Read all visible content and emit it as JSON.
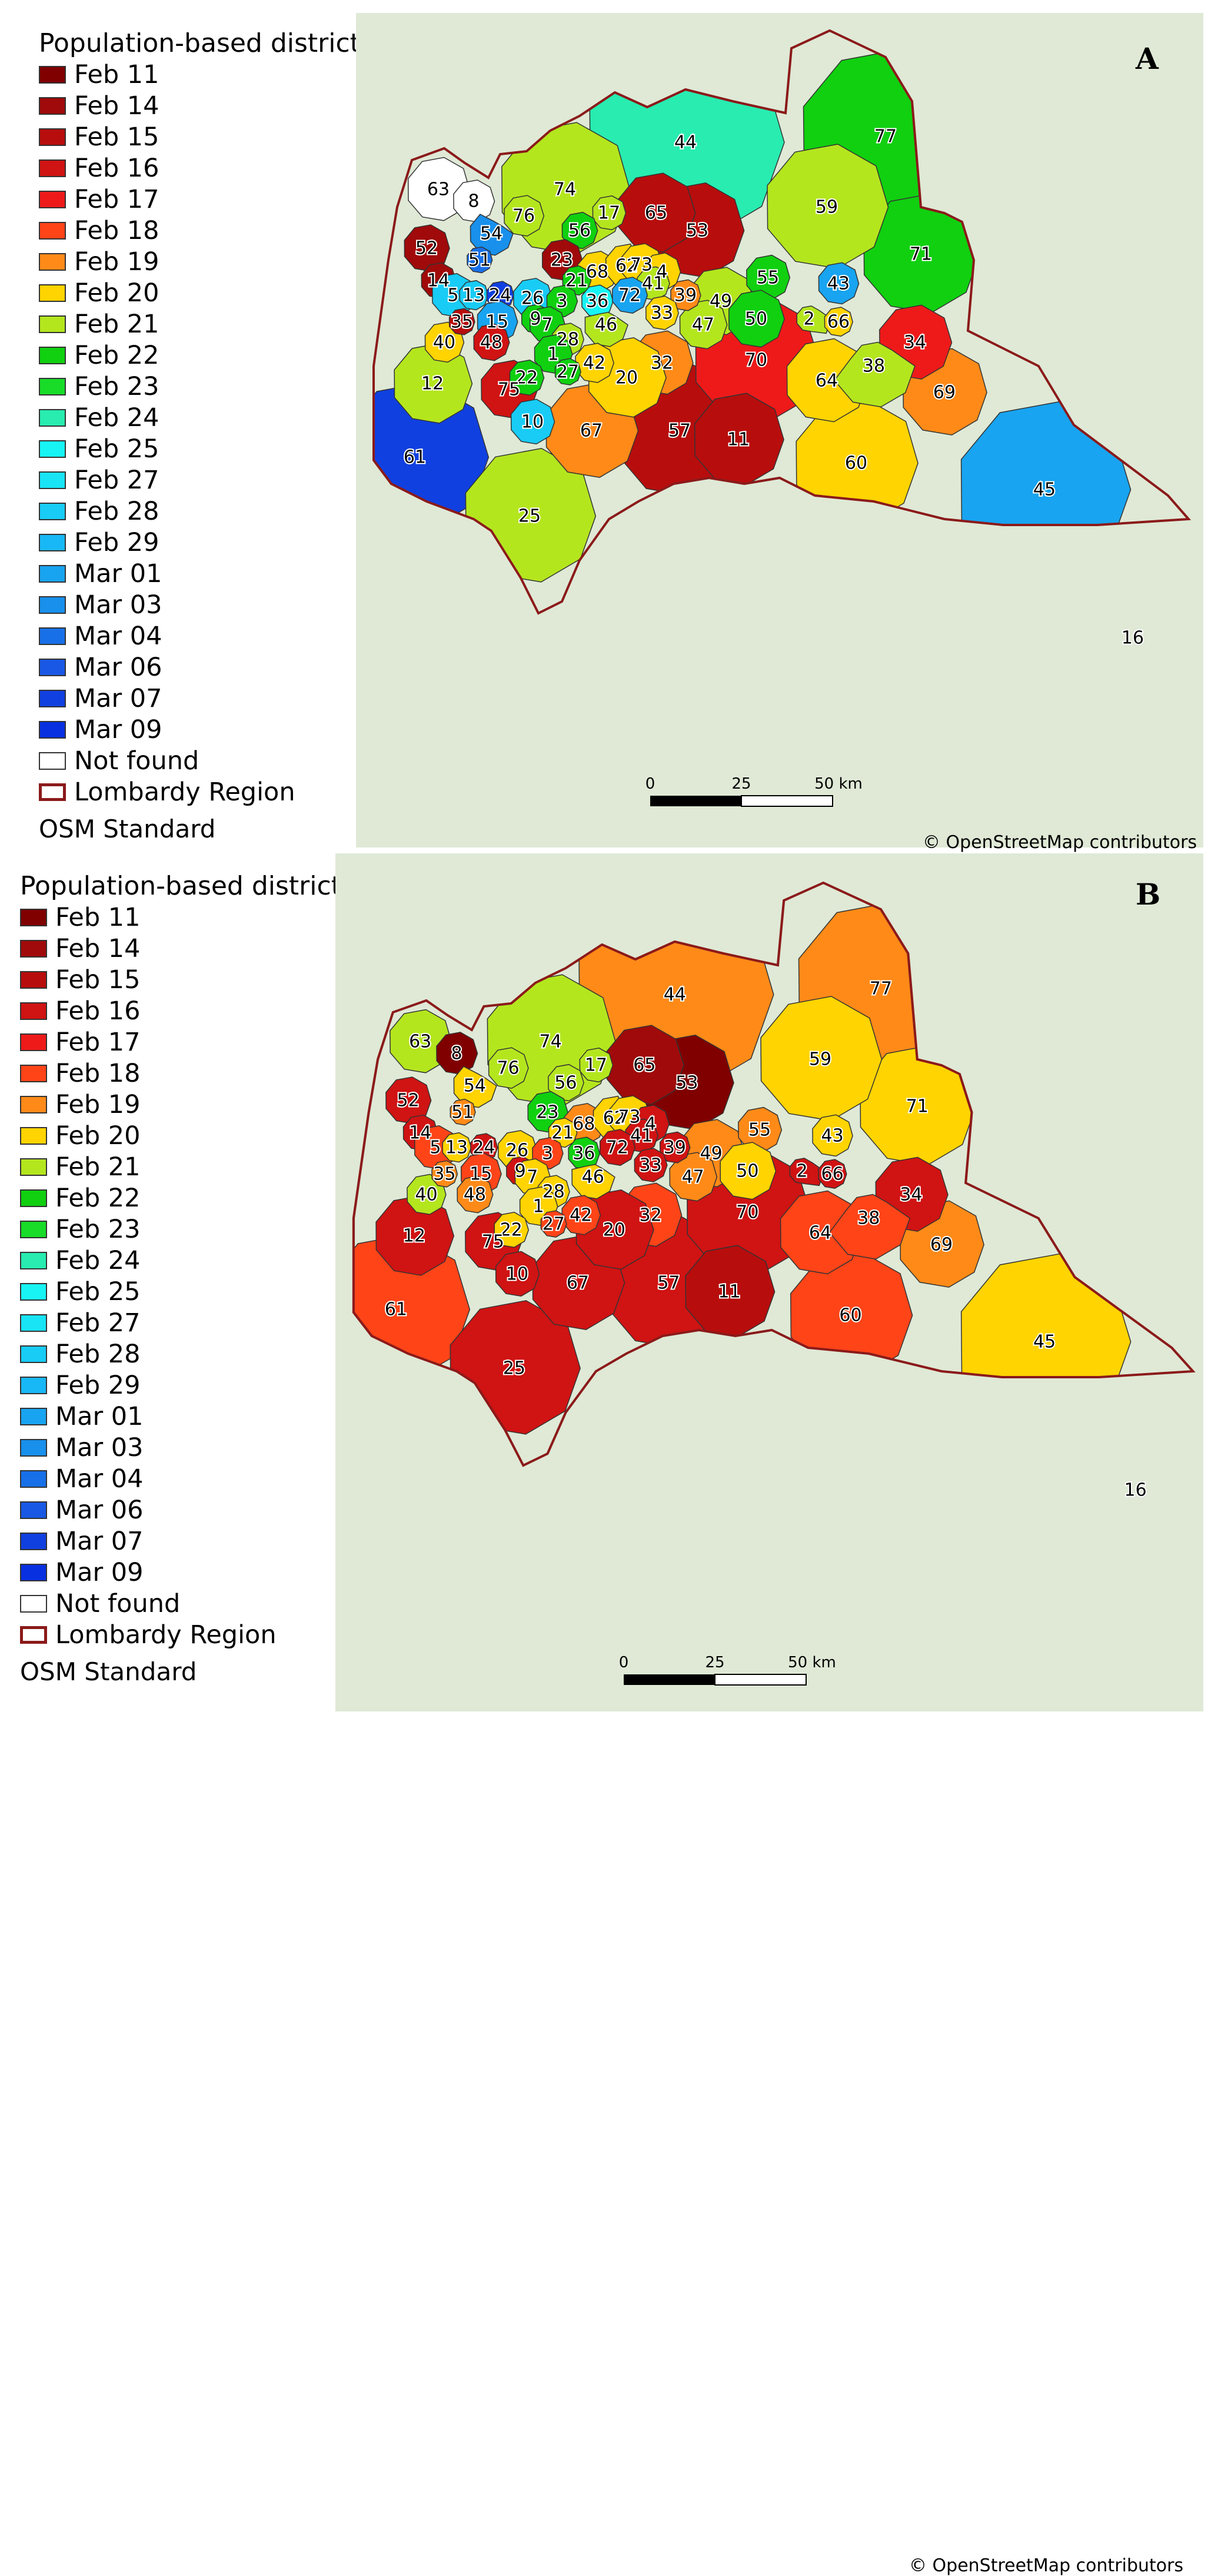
{
  "colors": {
    "Feb 11": "#800000",
    "Feb 14": "#a00a0a",
    "Feb 15": "#b80d0d",
    "Feb 16": "#d01313",
    "Feb 17": "#ee1a1a",
    "Feb 18": "#ff4418",
    "Feb 19": "#ff8a18",
    "Feb 20": "#ffd400",
    "Feb 21": "#b4e61e",
    "Feb 22": "#10d010",
    "Feb 23": "#18dc28",
    "Feb 24": "#28ecb0",
    "Feb 25": "#18f4f4",
    "Feb 27": "#18e4f6",
    "Feb 28": "#18ccf6",
    "Feb 29": "#18b8f6",
    "Mar 01": "#18a4f0",
    "Mar 03": "#1890ec",
    "Mar 04": "#1870e8",
    "Mar 06": "#1858e4",
    "Mar 07": "#1040e0",
    "Mar 09": "#0830e0",
    "Not found": "#ffffff",
    "region_border": "#8b1a1a",
    "basemap": "#dfe9d6"
  },
  "legend": {
    "title": "Population-based districts",
    "items": [
      "Feb 11",
      "Feb 14",
      "Feb 15",
      "Feb 16",
      "Feb 17",
      "Feb 18",
      "Feb 19",
      "Feb 20",
      "Feb 21",
      "Feb 22",
      "Feb 23",
      "Feb 24",
      "Feb 25",
      "Feb 27",
      "Feb 28",
      "Feb 29",
      "Mar 01",
      "Mar 03",
      "Mar 04",
      "Mar 06",
      "Mar 07",
      "Mar 09",
      "Not found"
    ],
    "region_label": "Lombardy Region",
    "basemap_label": "OSM Standard"
  },
  "scalebar": {
    "ticks": [
      "0",
      "25",
      "50 km"
    ]
  },
  "attribution": "© OpenStreetMap contributors",
  "panels": [
    {
      "letter": "A",
      "districts": [
        {
          "id": "63",
          "date": "Not found"
        },
        {
          "id": "8",
          "date": "Not found"
        },
        {
          "id": "16",
          "date": "Not found"
        },
        {
          "id": "44",
          "date": "Feb 24"
        },
        {
          "id": "77",
          "date": "Feb 22"
        },
        {
          "id": "74",
          "date": "Feb 21"
        },
        {
          "id": "76",
          "date": "Feb 21"
        },
        {
          "id": "17",
          "date": "Feb 21"
        },
        {
          "id": "56",
          "date": "Feb 22"
        },
        {
          "id": "65",
          "date": "Feb 15"
        },
        {
          "id": "53",
          "date": "Feb 15"
        },
        {
          "id": "59",
          "date": "Feb 21"
        },
        {
          "id": "71",
          "date": "Feb 22"
        },
        {
          "id": "54",
          "date": "Mar 03"
        },
        {
          "id": "52",
          "date": "Feb 14"
        },
        {
          "id": "23",
          "date": "Feb 14"
        },
        {
          "id": "68",
          "date": "Feb 20"
        },
        {
          "id": "62",
          "date": "Feb 20"
        },
        {
          "id": "73",
          "date": "Feb 20"
        },
        {
          "id": "51",
          "date": "Mar 04"
        },
        {
          "id": "4",
          "date": "Feb 20"
        },
        {
          "id": "41",
          "date": "Feb 21"
        },
        {
          "id": "55",
          "date": "Feb 22"
        },
        {
          "id": "43",
          "date": "Mar 01"
        },
        {
          "id": "14",
          "date": "Feb 14"
        },
        {
          "id": "21",
          "date": "Feb 22"
        },
        {
          "id": "39",
          "date": "Feb 19"
        },
        {
          "id": "49",
          "date": "Feb 21"
        },
        {
          "id": "5",
          "date": "Feb 28"
        },
        {
          "id": "13",
          "date": "Feb 28"
        },
        {
          "id": "24",
          "date": "Mar 07"
        },
        {
          "id": "26",
          "date": "Feb 28"
        },
        {
          "id": "3",
          "date": "Feb 22"
        },
        {
          "id": "36",
          "date": "Feb 25"
        },
        {
          "id": "72",
          "date": "Mar 01"
        },
        {
          "id": "33",
          "date": "Feb 20"
        },
        {
          "id": "50",
          "date": "Feb 22"
        },
        {
          "id": "2",
          "date": "Feb 21"
        },
        {
          "id": "66",
          "date": "Feb 20"
        },
        {
          "id": "35",
          "date": "Feb 15"
        },
        {
          "id": "15",
          "date": "Mar 01"
        },
        {
          "id": "9",
          "date": "Feb 22"
        },
        {
          "id": "7",
          "date": "Feb 22"
        },
        {
          "id": "46",
          "date": "Feb 21"
        },
        {
          "id": "47",
          "date": "Feb 21"
        },
        {
          "id": "34",
          "date": "Feb 17"
        },
        {
          "id": "40",
          "date": "Feb 20"
        },
        {
          "id": "48",
          "date": "Feb 16"
        },
        {
          "id": "28",
          "date": "Feb 21"
        },
        {
          "id": "1",
          "date": "Feb 22"
        },
        {
          "id": "42",
          "date": "Feb 20"
        },
        {
          "id": "32",
          "date": "Feb 19"
        },
        {
          "id": "70",
          "date": "Feb 17"
        },
        {
          "id": "38",
          "date": "Feb 21"
        },
        {
          "id": "22",
          "date": "Feb 22"
        },
        {
          "id": "27",
          "date": "Feb 22"
        },
        {
          "id": "20",
          "date": "Feb 20"
        },
        {
          "id": "64",
          "date": "Feb 20"
        },
        {
          "id": "12",
          "date": "Feb 21"
        },
        {
          "id": "75",
          "date": "Feb 16"
        },
        {
          "id": "69",
          "date": "Feb 19"
        },
        {
          "id": "10",
          "date": "Feb 28"
        },
        {
          "id": "67",
          "date": "Feb 19"
        },
        {
          "id": "57",
          "date": "Feb 15"
        },
        {
          "id": "11",
          "date": "Feb 15"
        },
        {
          "id": "61",
          "date": "Mar 07"
        },
        {
          "id": "60",
          "date": "Feb 20"
        },
        {
          "id": "45",
          "date": "Mar 01"
        },
        {
          "id": "25",
          "date": "Feb 21"
        }
      ]
    },
    {
      "letter": "B",
      "districts": [
        {
          "id": "63",
          "date": "Feb 21"
        },
        {
          "id": "8",
          "date": "Feb 11"
        },
        {
          "id": "16",
          "date": "Feb 16"
        },
        {
          "id": "44",
          "date": "Feb 19"
        },
        {
          "id": "77",
          "date": "Feb 19"
        },
        {
          "id": "74",
          "date": "Feb 21"
        },
        {
          "id": "76",
          "date": "Feb 21"
        },
        {
          "id": "17",
          "date": "Feb 21"
        },
        {
          "id": "56",
          "date": "Feb 21"
        },
        {
          "id": "65",
          "date": "Feb 14"
        },
        {
          "id": "53",
          "date": "Feb 11"
        },
        {
          "id": "59",
          "date": "Feb 20"
        },
        {
          "id": "71",
          "date": "Feb 20"
        },
        {
          "id": "54",
          "date": "Feb 20"
        },
        {
          "id": "52",
          "date": "Feb 16"
        },
        {
          "id": "23",
          "date": "Feb 22"
        },
        {
          "id": "68",
          "date": "Feb 19"
        },
        {
          "id": "62",
          "date": "Feb 20"
        },
        {
          "id": "73",
          "date": "Feb 20"
        },
        {
          "id": "51",
          "date": "Feb 19"
        },
        {
          "id": "4",
          "date": "Feb 16"
        },
        {
          "id": "41",
          "date": "Feb 16"
        },
        {
          "id": "55",
          "date": "Feb 19"
        },
        {
          "id": "43",
          "date": "Feb 20"
        },
        {
          "id": "14",
          "date": "Feb 16"
        },
        {
          "id": "21",
          "date": "Feb 20"
        },
        {
          "id": "39",
          "date": "Feb 16"
        },
        {
          "id": "49",
          "date": "Feb 19"
        },
        {
          "id": "5",
          "date": "Feb 18"
        },
        {
          "id": "13",
          "date": "Feb 20"
        },
        {
          "id": "24",
          "date": "Feb 16"
        },
        {
          "id": "26",
          "date": "Feb 20"
        },
        {
          "id": "3",
          "date": "Feb 18"
        },
        {
          "id": "36",
          "date": "Feb 22"
        },
        {
          "id": "72",
          "date": "Feb 16"
        },
        {
          "id": "33",
          "date": "Feb 16"
        },
        {
          "id": "50",
          "date": "Feb 20"
        },
        {
          "id": "2",
          "date": "Feb 16"
        },
        {
          "id": "66",
          "date": "Feb 16"
        },
        {
          "id": "35",
          "date": "Feb 19"
        },
        {
          "id": "15",
          "date": "Feb 18"
        },
        {
          "id": "9",
          "date": "Feb 16"
        },
        {
          "id": "7",
          "date": "Feb 20"
        },
        {
          "id": "46",
          "date": "Feb 20"
        },
        {
          "id": "47",
          "date": "Feb 19"
        },
        {
          "id": "34",
          "date": "Feb 16"
        },
        {
          "id": "40",
          "date": "Feb 21"
        },
        {
          "id": "48",
          "date": "Feb 19"
        },
        {
          "id": "28",
          "date": "Feb 20"
        },
        {
          "id": "1",
          "date": "Feb 20"
        },
        {
          "id": "42",
          "date": "Feb 18"
        },
        {
          "id": "32",
          "date": "Feb 18"
        },
        {
          "id": "70",
          "date": "Feb 16"
        },
        {
          "id": "38",
          "date": "Feb 18"
        },
        {
          "id": "22",
          "date": "Feb 20"
        },
        {
          "id": "27",
          "date": "Feb 18"
        },
        {
          "id": "20",
          "date": "Feb 16"
        },
        {
          "id": "64",
          "date": "Feb 18"
        },
        {
          "id": "12",
          "date": "Feb 16"
        },
        {
          "id": "75",
          "date": "Feb 16"
        },
        {
          "id": "69",
          "date": "Feb 19"
        },
        {
          "id": "10",
          "date": "Feb 16"
        },
        {
          "id": "67",
          "date": "Feb 16"
        },
        {
          "id": "57",
          "date": "Feb 16"
        },
        {
          "id": "11",
          "date": "Feb 15"
        },
        {
          "id": "61",
          "date": "Feb 18"
        },
        {
          "id": "60",
          "date": "Feb 18"
        },
        {
          "id": "45",
          "date": "Feb 20"
        },
        {
          "id": "25",
          "date": "Feb 16"
        }
      ]
    }
  ]
}
